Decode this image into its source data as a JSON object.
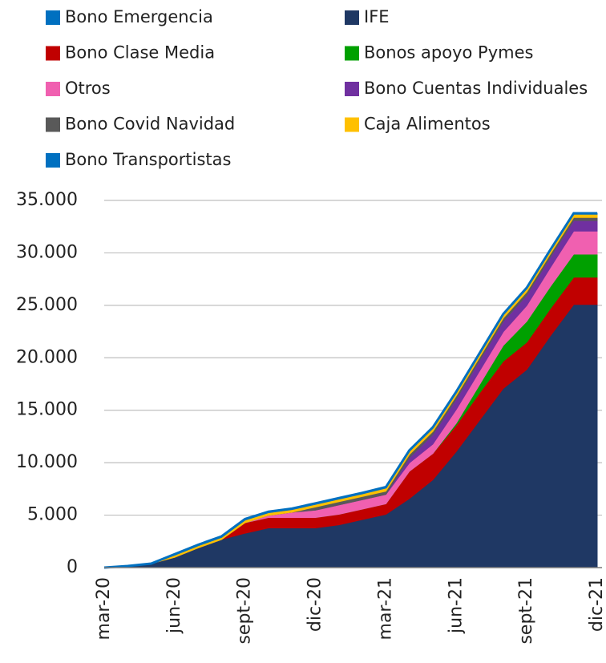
{
  "chart_data": {
    "type": "stacked-area",
    "categories": [
      "mar-20",
      null,
      null,
      "jun-20",
      null,
      null,
      "sept-20",
      null,
      null,
      "dic-20",
      null,
      null,
      "mar-21",
      null,
      null,
      "jun-21",
      null,
      null,
      "sept-21",
      null,
      null,
      "dic-21"
    ],
    "series": [
      {
        "name": "Bono Emergencia",
        "color": "#0070c0",
        "values": [
          0,
          50,
          80,
          80,
          80,
          80,
          80,
          80,
          80,
          80,
          80,
          80,
          80,
          80,
          80,
          80,
          80,
          80,
          80,
          80,
          80,
          80
        ]
      },
      {
        "name": "IFE",
        "color": "#1f3864",
        "values": [
          0,
          100,
          300,
          900,
          1800,
          2600,
          3200,
          3700,
          3700,
          3700,
          4000,
          4500,
          5000,
          6500,
          8300,
          11000,
          14000,
          17000,
          18800,
          22000,
          25000,
          25000
        ]
      },
      {
        "name": "Bono Clase Media",
        "color": "#c00000",
        "values": [
          0,
          0,
          0,
          0,
          0,
          0,
          1000,
          1000,
          1000,
          1000,
          1000,
          1000,
          1000,
          2600,
          2500,
          2500,
          2600,
          2600,
          2600,
          2600,
          2600,
          2600
        ]
      },
      {
        "name": "Bonos apoyo Pymes",
        "color": "#00a000",
        "values": [
          0,
          0,
          0,
          0,
          0,
          0,
          0,
          0,
          0,
          0,
          0,
          0,
          0,
          0,
          0,
          200,
          800,
          1500,
          2000,
          2100,
          2200,
          2200
        ]
      },
      {
        "name": "Otros",
        "color": "#f060b0",
        "values": [
          0,
          0,
          0,
          0,
          0,
          0,
          0,
          200,
          500,
          700,
          900,
          900,
          900,
          800,
          900,
          1300,
          1300,
          1300,
          1500,
          1800,
          2200,
          2200
        ]
      },
      {
        "name": "Bono Cuentas Individuales",
        "color": "#7030a0",
        "values": [
          0,
          0,
          0,
          0,
          0,
          0,
          0,
          0,
          0,
          0,
          0,
          0,
          0,
          500,
          900,
          1000,
          1000,
          1000,
          1000,
          1000,
          1000,
          1000
        ]
      },
      {
        "name": "Bono Covid Navidad",
        "color": "#595959",
        "values": [
          0,
          0,
          0,
          0,
          0,
          0,
          0,
          0,
          0,
          300,
          300,
          300,
          300,
          300,
          300,
          300,
          300,
          300,
          300,
          300,
          300,
          300
        ]
      },
      {
        "name": "Caja Alimentos",
        "color": "#ffc000",
        "values": [
          0,
          0,
          0,
          200,
          200,
          200,
          250,
          250,
          250,
          250,
          250,
          250,
          300,
          300,
          300,
          300,
          300,
          300,
          300,
          300,
          300,
          300
        ]
      },
      {
        "name": "Bono Transportistas",
        "color": "#0070c0",
        "values": [
          0,
          0,
          0,
          100,
          100,
          100,
          100,
          100,
          100,
          100,
          100,
          100,
          100,
          100,
          100,
          100,
          100,
          100,
          100,
          100,
          100,
          100
        ]
      }
    ],
    "ylim": [
      0,
      35000
    ],
    "yticks": [
      0,
      {
        "value": 5000,
        "label": "5.000"
      },
      {
        "value": 10000,
        "label": "10.000"
      },
      {
        "value": 15000,
        "label": "15.000"
      },
      {
        "value": 20000,
        "label": "20.000"
      },
      {
        "value": 25000,
        "label": "25.000"
      },
      {
        "value": 30000,
        "label": "30.000"
      },
      {
        "value": 35000,
        "label": "35.000"
      }
    ],
    "grid": true
  }
}
